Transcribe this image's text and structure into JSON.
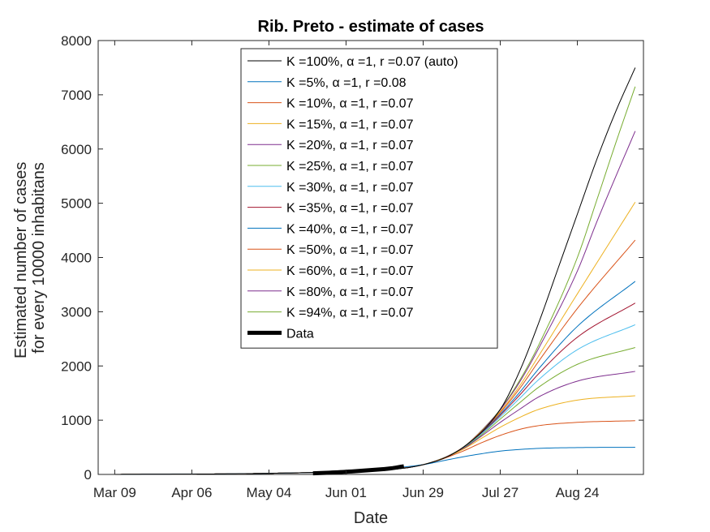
{
  "chart_data": {
    "type": "line",
    "title": "Rib. Preto - estimate of cases",
    "xlabel": "Date",
    "ylabel": "Estimated number of cases\nfor every 10000 inhabitans",
    "x_ticks": [
      "Mar 09",
      "Apr 06",
      "May 04",
      "Jun 01",
      "Jun 29",
      "Jul 27",
      "Aug 24"
    ],
    "x_tick_dates": [
      "2020-03-09",
      "2020-04-06",
      "2020-05-04",
      "2020-06-01",
      "2020-06-29",
      "2020-07-27",
      "2020-08-24"
    ],
    "xlim": [
      "2020-03-03",
      "2020-09-17"
    ],
    "ylim": [
      0,
      8000
    ],
    "y_ticks": [
      0,
      1000,
      2000,
      3000,
      4000,
      5000,
      6000,
      7000,
      8000
    ],
    "grid": false,
    "legend_position": "top",
    "series": [
      {
        "name": "K =100%, α =1, r =0.07 (auto)",
        "color": "#000000",
        "width": 1,
        "x": [
          "2020-03-09",
          "2020-05-04",
          "2020-06-01",
          "2020-06-29",
          "2020-07-13",
          "2020-07-27",
          "2020-08-03",
          "2020-08-10",
          "2020-08-17",
          "2020-08-24",
          "2020-08-31",
          "2020-09-07",
          "2020-09-14"
        ],
        "y": [
          0,
          20,
          60,
          180,
          480,
          1200,
          1900,
          2800,
          3800,
          4800,
          5800,
          6700,
          7500
        ]
      },
      {
        "name": "K =5%, α =1, r =0.08",
        "color": "#0072BD",
        "width": 1,
        "x": [
          "2020-03-09",
          "2020-05-04",
          "2020-06-01",
          "2020-06-29",
          "2020-07-06",
          "2020-07-13",
          "2020-07-20",
          "2020-07-27",
          "2020-08-03",
          "2020-08-10",
          "2020-08-24",
          "2020-09-14"
        ],
        "y": [
          0,
          20,
          60,
          180,
          250,
          320,
          380,
          430,
          460,
          480,
          495,
          500
        ]
      },
      {
        "name": "K =10%, α =1, r =0.07",
        "color": "#D95319",
        "width": 1,
        "x": [
          "2020-03-09",
          "2020-05-04",
          "2020-06-01",
          "2020-06-29",
          "2020-07-13",
          "2020-07-20",
          "2020-07-27",
          "2020-08-03",
          "2020-08-10",
          "2020-08-24",
          "2020-09-14"
        ],
        "y": [
          0,
          20,
          60,
          180,
          420,
          580,
          720,
          830,
          900,
          960,
          990
        ]
      },
      {
        "name": "K =15%, α =1, r =0.07",
        "color": "#EDB120",
        "width": 1,
        "x": [
          "2020-03-09",
          "2020-05-04",
          "2020-06-01",
          "2020-06-29",
          "2020-07-13",
          "2020-07-20",
          "2020-07-27",
          "2020-08-03",
          "2020-08-10",
          "2020-08-24",
          "2020-09-14"
        ],
        "y": [
          0,
          20,
          60,
          180,
          450,
          660,
          870,
          1050,
          1200,
          1370,
          1450
        ]
      },
      {
        "name": "K =20%, α =1, r =0.07",
        "color": "#7E2F8E",
        "width": 1,
        "x": [
          "2020-03-09",
          "2020-05-04",
          "2020-06-01",
          "2020-06-29",
          "2020-07-13",
          "2020-07-20",
          "2020-07-27",
          "2020-08-03",
          "2020-08-10",
          "2020-08-24",
          "2020-09-14"
        ],
        "y": [
          0,
          20,
          60,
          180,
          460,
          700,
          960,
          1200,
          1430,
          1720,
          1900
        ]
      },
      {
        "name": "K =25%, α =1, r =0.07",
        "color": "#77AC30",
        "width": 1,
        "x": [
          "2020-03-09",
          "2020-05-04",
          "2020-06-01",
          "2020-06-29",
          "2020-07-13",
          "2020-07-20",
          "2020-07-27",
          "2020-08-03",
          "2020-08-10",
          "2020-08-24",
          "2020-09-14"
        ],
        "y": [
          0,
          20,
          60,
          180,
          465,
          720,
          1020,
          1320,
          1610,
          2030,
          2340
        ]
      },
      {
        "name": "K =30%, α =1, r =0.07",
        "color": "#4DBEEE",
        "width": 1,
        "x": [
          "2020-03-09",
          "2020-05-04",
          "2020-06-01",
          "2020-06-29",
          "2020-07-13",
          "2020-07-20",
          "2020-07-27",
          "2020-08-03",
          "2020-08-10",
          "2020-08-24",
          "2020-09-14"
        ],
        "y": [
          0,
          20,
          60,
          180,
          470,
          740,
          1060,
          1400,
          1750,
          2300,
          2760
        ]
      },
      {
        "name": "K =35%, α =1, r =0.07",
        "color": "#A2142F",
        "width": 1,
        "x": [
          "2020-03-09",
          "2020-05-04",
          "2020-06-01",
          "2020-06-29",
          "2020-07-13",
          "2020-07-20",
          "2020-07-27",
          "2020-08-03",
          "2020-08-10",
          "2020-08-24",
          "2020-09-14"
        ],
        "y": [
          0,
          20,
          60,
          180,
          472,
          750,
          1090,
          1460,
          1860,
          2530,
          3160
        ]
      },
      {
        "name": "K =40%, α =1, r =0.07",
        "color": "#0072BD",
        "width": 1,
        "x": [
          "2020-03-09",
          "2020-05-04",
          "2020-06-01",
          "2020-06-29",
          "2020-07-13",
          "2020-07-20",
          "2020-07-27",
          "2020-08-03",
          "2020-08-10",
          "2020-08-24",
          "2020-09-14"
        ],
        "y": [
          0,
          20,
          60,
          180,
          475,
          760,
          1110,
          1510,
          1950,
          2730,
          3560
        ]
      },
      {
        "name": "K =50%, α =1, r =0.07",
        "color": "#D95319",
        "width": 1,
        "x": [
          "2020-03-09",
          "2020-05-04",
          "2020-06-01",
          "2020-06-29",
          "2020-07-13",
          "2020-07-20",
          "2020-07-27",
          "2020-08-03",
          "2020-08-10",
          "2020-08-24",
          "2020-09-14"
        ],
        "y": [
          0,
          20,
          60,
          180,
          478,
          775,
          1140,
          1580,
          2090,
          3060,
          4320
        ]
      },
      {
        "name": "K =60%, α =1, r =0.07",
        "color": "#EDB120",
        "width": 1,
        "x": [
          "2020-03-09",
          "2020-05-04",
          "2020-06-01",
          "2020-06-29",
          "2020-07-13",
          "2020-07-20",
          "2020-07-27",
          "2020-08-03",
          "2020-08-10",
          "2020-08-24",
          "2020-09-14"
        ],
        "y": [
          0,
          20,
          60,
          180,
          480,
          785,
          1160,
          1630,
          2190,
          3330,
          5020
        ]
      },
      {
        "name": "K =80%, α =1, r =0.07",
        "color": "#7E2F8E",
        "width": 1,
        "x": [
          "2020-03-09",
          "2020-05-04",
          "2020-06-01",
          "2020-06-29",
          "2020-07-13",
          "2020-07-20",
          "2020-07-27",
          "2020-08-03",
          "2020-08-10",
          "2020-08-24",
          "2020-08-31",
          "2020-09-07",
          "2020-09-14"
        ],
        "y": [
          0,
          20,
          60,
          180,
          482,
          795,
          1190,
          1700,
          2330,
          3750,
          4650,
          5500,
          6330
        ]
      },
      {
        "name": "K =94%, α =1, r =0.07",
        "color": "#77AC30",
        "width": 1,
        "x": [
          "2020-03-09",
          "2020-05-04",
          "2020-06-01",
          "2020-06-29",
          "2020-07-13",
          "2020-07-20",
          "2020-07-27",
          "2020-08-03",
          "2020-08-10",
          "2020-08-24",
          "2020-08-31",
          "2020-09-07",
          "2020-09-14"
        ],
        "y": [
          0,
          20,
          60,
          180,
          483,
          800,
          1200,
          1730,
          2390,
          4000,
          5050,
          6120,
          7150
        ]
      },
      {
        "name": "Data",
        "color": "#000000",
        "width": 5,
        "x": [
          "2020-05-20",
          "2020-05-27",
          "2020-06-03",
          "2020-06-10",
          "2020-06-17",
          "2020-06-22"
        ],
        "y": [
          20,
          35,
          55,
          80,
          110,
          150
        ]
      }
    ]
  }
}
